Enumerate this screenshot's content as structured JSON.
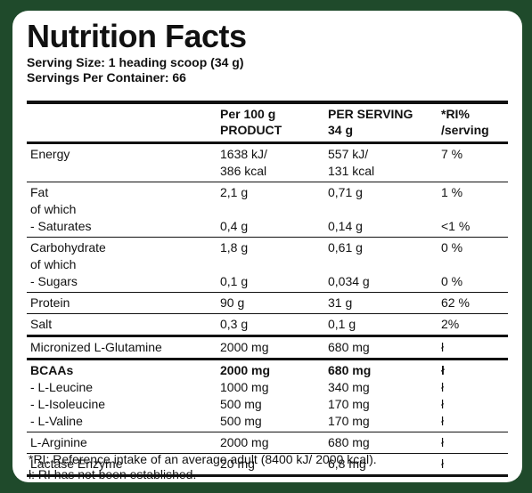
{
  "header": {
    "title": "Nutrition Facts",
    "serving_size": "Serving Size: 1 heading scoop (34 g)",
    "servings_per_container": "Servings Per Container: 66"
  },
  "table": {
    "columns": [
      [
        "",
        ""
      ],
      [
        "Per 100 g",
        "PRODUCT"
      ],
      [
        "PER SERVING",
        "34 g"
      ],
      [
        "*RI%",
        "/serving"
      ]
    ],
    "rows": [
      {
        "name": "Energy",
        "per100": "1638 kJ/",
        "serving": "557 kJ/",
        "ri": "7 %"
      },
      {
        "name": "",
        "per100": "386 kcal",
        "serving": "131 kcal",
        "ri": ""
      },
      {
        "name": "Fat",
        "per100": "2,1 g",
        "serving": "0,71 g",
        "ri": "1 %"
      },
      {
        "name": "of which",
        "per100": "",
        "serving": "",
        "ri": ""
      },
      {
        "name": "- Saturates",
        "per100": "0,4 g",
        "serving": "0,14 g",
        "ri": "<1 %"
      },
      {
        "name": "Carbohydrate",
        "per100": "1,8 g",
        "serving": "0,61 g",
        "ri": "0 %"
      },
      {
        "name": "of which",
        "per100": "",
        "serving": "",
        "ri": ""
      },
      {
        "name": "- Sugars",
        "per100": "0,1 g",
        "serving": "0,034 g",
        "ri": "0 %"
      },
      {
        "name": "Protein",
        "per100": "90 g",
        "serving": "31 g",
        "ri": "62 %"
      },
      {
        "name": "Salt",
        "per100": "0,3 g",
        "serving": "0,1 g",
        "ri": "2%"
      },
      {
        "name": "Micronized L-Glutamine",
        "per100": "2000 mg",
        "serving": "680 mg",
        "ri": "ł"
      },
      {
        "name": "BCAAs",
        "per100": "2000 mg",
        "serving": "680 mg",
        "ri": "ł"
      },
      {
        "name": "- L-Leucine",
        "per100": "1000 mg",
        "serving": "340 mg",
        "ri": "ł"
      },
      {
        "name": "- L-Isoleucine",
        "per100": "500 mg",
        "serving": "170 mg",
        "ri": "ł"
      },
      {
        "name": "- L-Valine",
        "per100": "500 mg",
        "serving": "170 mg",
        "ri": "ł"
      },
      {
        "name": "L-Arginine",
        "per100": "2000 mg",
        "serving": "680 mg",
        "ri": "ł"
      },
      {
        "name": "Lactase Enzyme",
        "per100": "20 mg",
        "serving": "6,8 mg",
        "ri": "ł"
      }
    ]
  },
  "footnotes": [
    "*RI: Reference intake of an average adult (8400 kJ/ 2000 kcal).",
    "ł: RI has not been established."
  ]
}
